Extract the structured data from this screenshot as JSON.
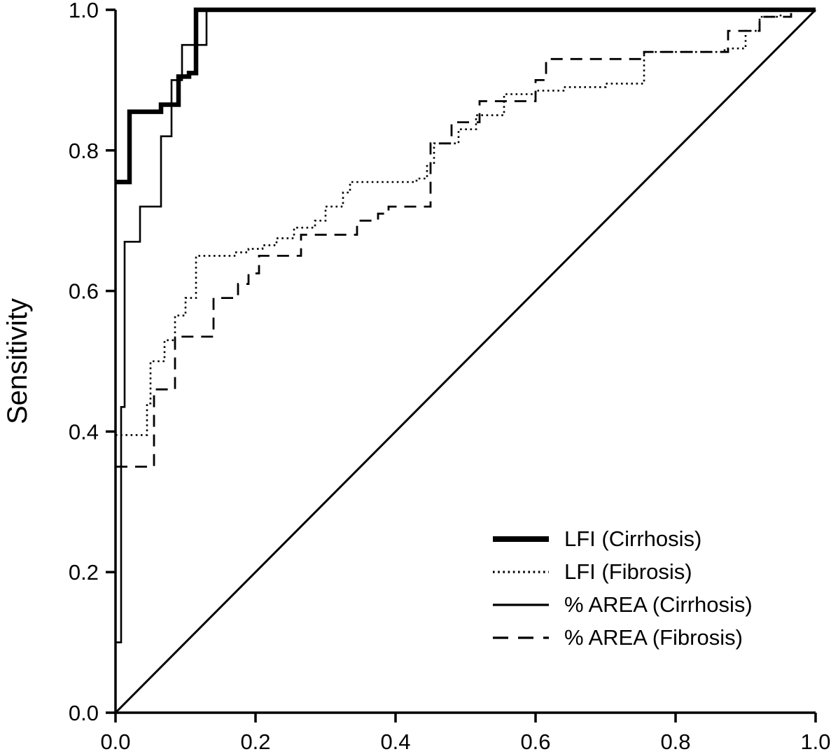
{
  "chart_data": {
    "type": "line",
    "subtype": "roc-step-curves",
    "title": "",
    "xlabel": "",
    "ylabel": "Sensitivity",
    "xlim": [
      0,
      1
    ],
    "ylim": [
      0,
      1
    ],
    "x_ticks": [
      "0.0",
      "0.2",
      "0.4",
      "0.6",
      "0.8",
      "1.0"
    ],
    "y_ticks": [
      "0.0",
      "0.2",
      "0.4",
      "0.6",
      "0.8",
      "1.0"
    ],
    "grid": false,
    "legend_position": "lower right inside plot",
    "line_color": "#000000",
    "background_color": "#ffffff",
    "reference_line": {
      "from": [
        0,
        0
      ],
      "to": [
        1,
        1
      ],
      "style": "thin-solid"
    },
    "series": [
      {
        "name": "LFI (Cirrhosis)",
        "style": "thick-solid",
        "points": [
          [
            0,
            0.755
          ],
          [
            0.02,
            0.855
          ],
          [
            0.065,
            0.865
          ],
          [
            0.09,
            0.905
          ],
          [
            0.105,
            0.91
          ],
          [
            0.115,
            1.0
          ],
          [
            1,
            1
          ]
        ]
      },
      {
        "name": "LFI (Fibrosis)",
        "style": "dotted",
        "points": [
          [
            0,
            0.395
          ],
          [
            0.045,
            0.44
          ],
          [
            0.05,
            0.5
          ],
          [
            0.07,
            0.53
          ],
          [
            0.085,
            0.565
          ],
          [
            0.1,
            0.59
          ],
          [
            0.115,
            0.65
          ],
          [
            0.17,
            0.655
          ],
          [
            0.19,
            0.66
          ],
          [
            0.21,
            0.665
          ],
          [
            0.23,
            0.675
          ],
          [
            0.255,
            0.69
          ],
          [
            0.285,
            0.7
          ],
          [
            0.3,
            0.72
          ],
          [
            0.325,
            0.74
          ],
          [
            0.335,
            0.755
          ],
          [
            0.43,
            0.76
          ],
          [
            0.445,
            0.78
          ],
          [
            0.455,
            0.81
          ],
          [
            0.49,
            0.83
          ],
          [
            0.515,
            0.85
          ],
          [
            0.555,
            0.88
          ],
          [
            0.6,
            0.885
          ],
          [
            0.64,
            0.89
          ],
          [
            0.7,
            0.895
          ],
          [
            0.755,
            0.94
          ],
          [
            0.87,
            0.945
          ],
          [
            0.9,
            0.97
          ],
          [
            0.92,
            0.99
          ],
          [
            0.95,
            1.0
          ],
          [
            1,
            1
          ]
        ]
      },
      {
        "name": "% AREA (Cirrhosis)",
        "style": "thin-solid",
        "points": [
          [
            0,
            0.1
          ],
          [
            0.008,
            0.435
          ],
          [
            0.013,
            0.67
          ],
          [
            0.035,
            0.72
          ],
          [
            0.065,
            0.82
          ],
          [
            0.08,
            0.9
          ],
          [
            0.095,
            0.95
          ],
          [
            0.13,
            1.0
          ],
          [
            1,
            1
          ]
        ]
      },
      {
        "name": "% AREA (Fibrosis)",
        "style": "dashed",
        "points": [
          [
            0,
            0.35
          ],
          [
            0.055,
            0.46
          ],
          [
            0.085,
            0.535
          ],
          [
            0.14,
            0.59
          ],
          [
            0.175,
            0.61
          ],
          [
            0.19,
            0.625
          ],
          [
            0.205,
            0.65
          ],
          [
            0.265,
            0.68
          ],
          [
            0.345,
            0.7
          ],
          [
            0.375,
            0.71
          ],
          [
            0.39,
            0.72
          ],
          [
            0.45,
            0.81
          ],
          [
            0.48,
            0.84
          ],
          [
            0.52,
            0.87
          ],
          [
            0.6,
            0.9
          ],
          [
            0.615,
            0.93
          ],
          [
            0.755,
            0.94
          ],
          [
            0.875,
            0.97
          ],
          [
            0.92,
            0.99
          ],
          [
            0.965,
            1.0
          ],
          [
            1,
            1
          ]
        ]
      }
    ]
  }
}
